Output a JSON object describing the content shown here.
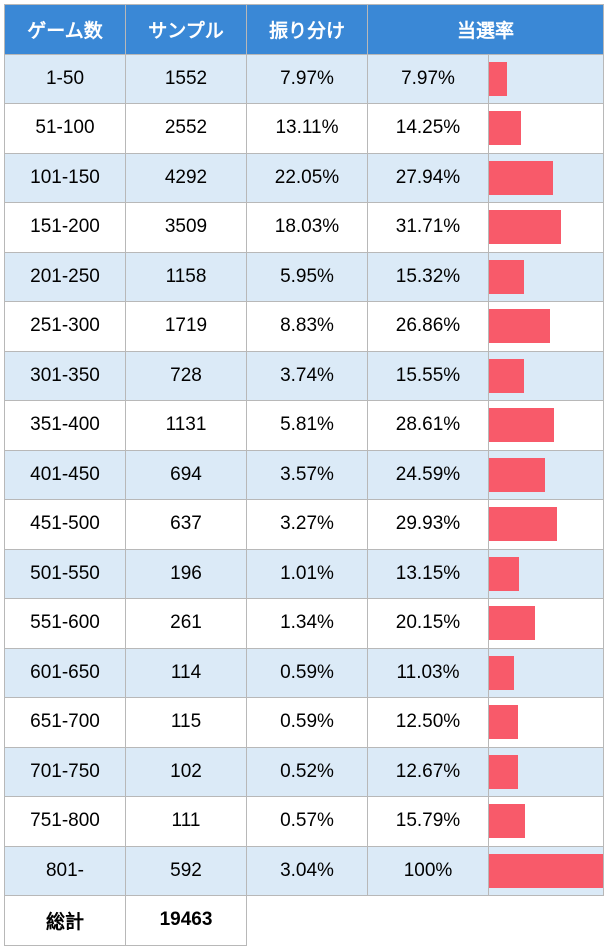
{
  "columns": {
    "game": "ゲーム数",
    "sample": "サンプル",
    "dist": "振り分け",
    "win": "当選率"
  },
  "bar_color": "#f85a6a",
  "header_bg": "#3a88d6",
  "header_fg": "#ffffff",
  "stripe_even": "#dbeaf7",
  "stripe_odd": "#ffffff",
  "bar_max_pct": 100,
  "rows": [
    {
      "game": "1-50",
      "sample": "1552",
      "dist": "7.97%",
      "win": "7.97%",
      "bar": 7.97
    },
    {
      "game": "51-100",
      "sample": "2552",
      "dist": "13.11%",
      "win": "14.25%",
      "bar": 14.25
    },
    {
      "game": "101-150",
      "sample": "4292",
      "dist": "22.05%",
      "win": "27.94%",
      "bar": 27.94
    },
    {
      "game": "151-200",
      "sample": "3509",
      "dist": "18.03%",
      "win": "31.71%",
      "bar": 31.71
    },
    {
      "game": "201-250",
      "sample": "1158",
      "dist": "5.95%",
      "win": "15.32%",
      "bar": 15.32
    },
    {
      "game": "251-300",
      "sample": "1719",
      "dist": "8.83%",
      "win": "26.86%",
      "bar": 26.86
    },
    {
      "game": "301-350",
      "sample": "728",
      "dist": "3.74%",
      "win": "15.55%",
      "bar": 15.55
    },
    {
      "game": "351-400",
      "sample": "1131",
      "dist": "5.81%",
      "win": "28.61%",
      "bar": 28.61
    },
    {
      "game": "401-450",
      "sample": "694",
      "dist": "3.57%",
      "win": "24.59%",
      "bar": 24.59
    },
    {
      "game": "451-500",
      "sample": "637",
      "dist": "3.27%",
      "win": "29.93%",
      "bar": 29.93
    },
    {
      "game": "501-550",
      "sample": "196",
      "dist": "1.01%",
      "win": "13.15%",
      "bar": 13.15
    },
    {
      "game": "551-600",
      "sample": "261",
      "dist": "1.34%",
      "win": "20.15%",
      "bar": 20.15
    },
    {
      "game": "601-650",
      "sample": "114",
      "dist": "0.59%",
      "win": "11.03%",
      "bar": 11.03
    },
    {
      "game": "651-700",
      "sample": "115",
      "dist": "0.59%",
      "win": "12.50%",
      "bar": 12.5
    },
    {
      "game": "701-750",
      "sample": "102",
      "dist": "0.52%",
      "win": "12.67%",
      "bar": 12.67
    },
    {
      "game": "751-800",
      "sample": "111",
      "dist": "0.57%",
      "win": "15.79%",
      "bar": 15.79
    },
    {
      "game": "801-",
      "sample": "592",
      "dist": "3.04%",
      "win": "100%",
      "bar": 100
    }
  ],
  "footer": {
    "label": "総計",
    "total": "19463"
  }
}
